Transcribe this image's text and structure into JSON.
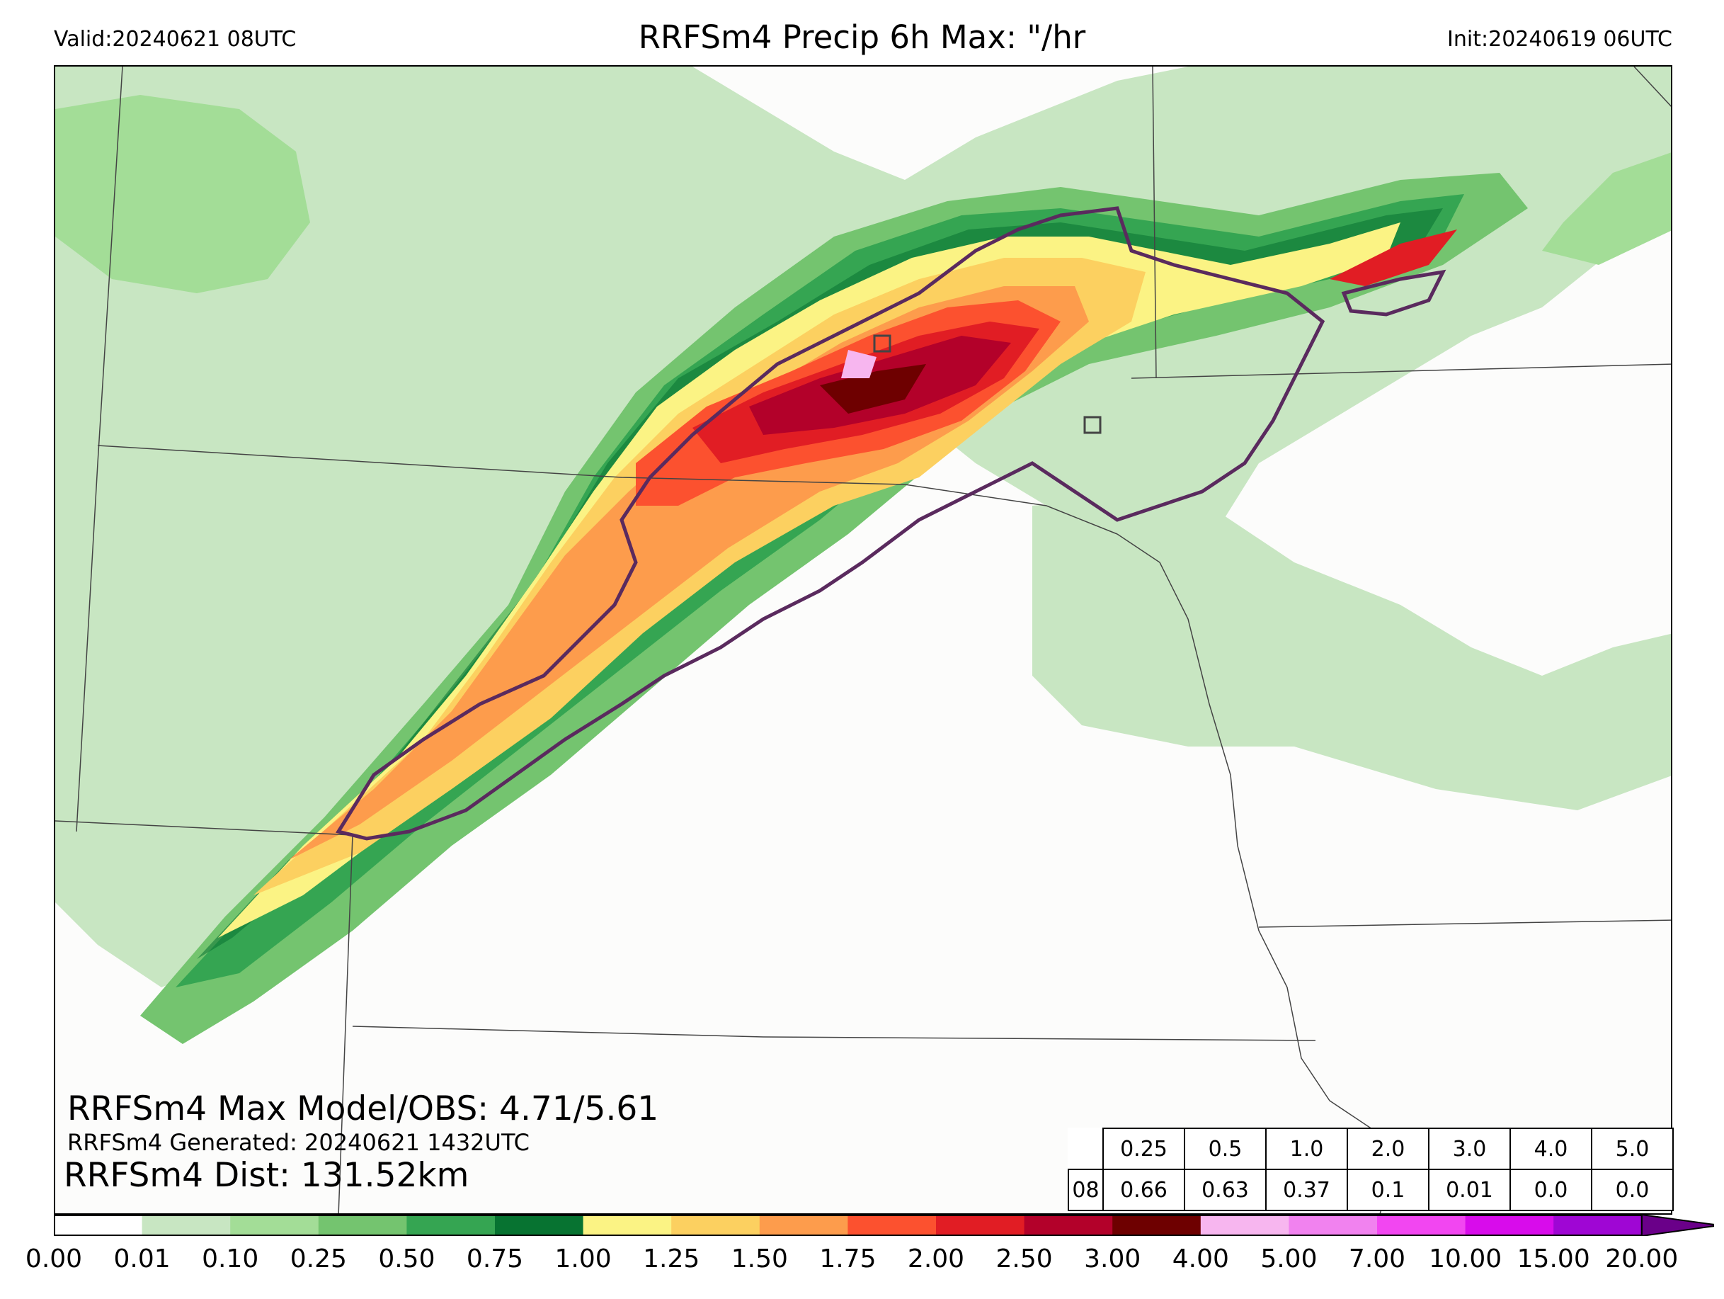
{
  "header": {
    "valid": "Valid:20240621 08UTC",
    "title": "RRFSm4 Precip 6h Max: \"/hr",
    "init": "Init:20240619 06UTC"
  },
  "stats": {
    "max_model_obs": "RRFSm4 Max Model/OBS: 4.71/5.61",
    "generated": "RRFSm4 Generated: 20240621 1432UTC",
    "distance": "RRFSm4 Dist: 131.52km"
  },
  "threshold_table": {
    "thresholds": [
      "0.25",
      "0.5",
      "1.0",
      "2.0",
      "3.0",
      "4.0",
      "5.0"
    ],
    "row_label": "08",
    "values": [
      "0.66",
      "0.63",
      "0.37",
      "0.1",
      "0.01",
      "0.0",
      "0.0"
    ]
  },
  "colorbar": {
    "ticks": [
      "0.00",
      "0.01",
      "0.10",
      "0.25",
      "0.50",
      "0.75",
      "1.00",
      "1.25",
      "1.50",
      "1.75",
      "2.00",
      "2.50",
      "3.00",
      "4.00",
      "5.00",
      "7.00",
      "10.00",
      "15.00",
      "20.00"
    ],
    "colors": [
      "#ffffff",
      "#c8e6c2",
      "#a3dd97",
      "#74c46f",
      "#35a552",
      "#077331",
      "#fbf384",
      "#fcd060",
      "#fd9c4c",
      "#fc512f",
      "#e11d24",
      "#b3012a",
      "#6e0000",
      "#f7b6ef",
      "#f182ef",
      "#f246f1",
      "#d80ceb",
      "#9f06d4"
    ],
    "extend_color": "#6a0089"
  },
  "map": {
    "elements": [
      "state-borders",
      "precip-swath",
      "observed-contour",
      "observation-box-markers"
    ]
  }
}
